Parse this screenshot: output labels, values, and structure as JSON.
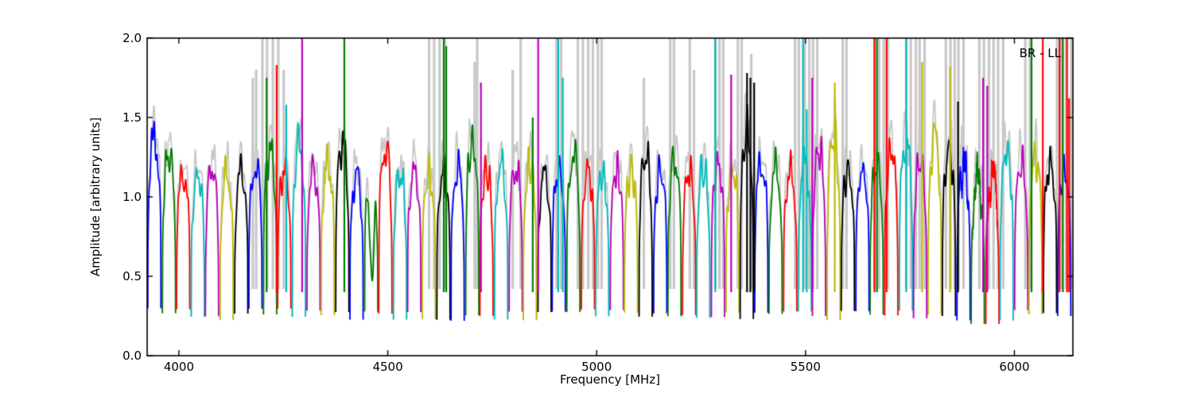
{
  "figure": {
    "background": "#ffffff"
  },
  "chart_data": {
    "type": "line",
    "title": "",
    "xlabel": "Frequency [MHz]",
    "ylabel": "Amplitude [arbitrary units]",
    "annotation": "BR - LL",
    "xlim": [
      3924,
      6140
    ],
    "ylim": [
      0.0,
      2.0
    ],
    "xticks": [
      4000,
      4500,
      5000,
      5500,
      6000
    ],
    "xtick_labels": [
      "4000",
      "4500",
      "5000",
      "5500",
      "6000"
    ],
    "yticks": [
      0.0,
      0.5,
      1.0,
      1.5,
      2.0
    ],
    "ytick_labels": [
      "0.0",
      "0.5",
      "1.0",
      "1.5",
      "2.0"
    ],
    "grid": false,
    "legend": null,
    "palette": {
      "b": "#0000ff",
      "g": "#007d00",
      "r": "#ff0000",
      "c": "#00bcbc",
      "m": "#bc00bc",
      "y": "#bcbc00",
      "k": "#000000",
      "gray": "#c8c8c8"
    },
    "overlay_color_key": "gray",
    "window_width_mhz": 34.6,
    "baseline_min": 0.24,
    "windows": [
      {
        "f0": 3924,
        "color": "b",
        "peak": 1.53
      },
      {
        "f0": 3959,
        "color": "g",
        "peak": 1.42
      },
      {
        "f0": 3993,
        "color": "r",
        "peak": 1.27
      },
      {
        "f0": 4028,
        "color": "c",
        "peak": 1.27
      },
      {
        "f0": 4062,
        "color": "m",
        "peak": 1.32
      },
      {
        "f0": 4097,
        "color": "y",
        "peak": 1.28
      },
      {
        "f0": 4132,
        "color": "k",
        "peak": 1.3
      },
      {
        "f0": 4166,
        "color": "b",
        "peak": 1.33
      },
      {
        "f0": 4201,
        "color": "g",
        "peak": 1.45
      },
      {
        "f0": 4235,
        "color": "r",
        "peak": 1.3
      },
      {
        "f0": 4270,
        "color": "c",
        "peak": 1.5
      },
      {
        "f0": 4305,
        "color": "m",
        "peak": 1.3
      },
      {
        "f0": 4339,
        "color": "y",
        "peak": 1.35
      },
      {
        "f0": 4374,
        "color": "k",
        "peak": 1.5
      },
      {
        "f0": 4408,
        "color": "b",
        "peak": 1.28
      },
      {
        "f0": 4443,
        "color": "g",
        "peak": 1.32,
        "dip": {
          "pos": 0.55,
          "width": 0.22,
          "depth": 0.6
        }
      },
      {
        "f0": 4477,
        "color": "r",
        "peak": 1.46
      },
      {
        "f0": 4512,
        "color": "c",
        "peak": 1.28
      },
      {
        "f0": 4546,
        "color": "m",
        "peak": 1.3
      },
      {
        "f0": 4581,
        "color": "y",
        "peak": 1.28
      },
      {
        "f0": 4616,
        "color": "k",
        "peak": 1.3
      },
      {
        "f0": 4650,
        "color": "b",
        "peak": 1.33
      },
      {
        "f0": 4685,
        "color": "g",
        "peak": 1.5
      },
      {
        "f0": 4719,
        "color": "r",
        "peak": 1.3
      },
      {
        "f0": 4754,
        "color": "c",
        "peak": 1.35
      },
      {
        "f0": 4789,
        "color": "m",
        "peak": 1.32
      },
      {
        "f0": 4823,
        "color": "y",
        "peak": 1.35
      },
      {
        "f0": 4858,
        "color": "k",
        "peak": 1.28
      },
      {
        "f0": 4892,
        "color": "b",
        "peak": 1.3
      },
      {
        "f0": 4927,
        "color": "g",
        "peak": 1.42
      },
      {
        "f0": 4962,
        "color": "r",
        "peak": 1.3
      },
      {
        "f0": 4996,
        "color": "c",
        "peak": 1.28
      },
      {
        "f0": 5031,
        "color": "m",
        "peak": 1.3
      },
      {
        "f0": 5065,
        "color": "y",
        "peak": 1.3
      },
      {
        "f0": 5100,
        "color": "k",
        "peak": 1.42
      },
      {
        "f0": 5135,
        "color": "b",
        "peak": 1.3
      },
      {
        "f0": 5169,
        "color": "g",
        "peak": 1.38
      },
      {
        "f0": 5204,
        "color": "r",
        "peak": 1.3
      },
      {
        "f0": 5238,
        "color": "c",
        "peak": 1.32
      },
      {
        "f0": 5273,
        "color": "m",
        "peak": 1.35
      },
      {
        "f0": 5308,
        "color": "y",
        "peak": 1.3
      },
      {
        "f0": 5342,
        "color": "k",
        "peak": 1.6
      },
      {
        "f0": 5377,
        "color": "b",
        "peak": 1.35
      },
      {
        "f0": 5411,
        "color": "g",
        "peak": 1.32
      },
      {
        "f0": 5446,
        "color": "r",
        "peak": 1.3
      },
      {
        "f0": 5481,
        "color": "c",
        "peak": 1.35
      },
      {
        "f0": 5515,
        "color": "m",
        "peak": 1.45
      },
      {
        "f0": 5550,
        "color": "y",
        "peak": 1.55
      },
      {
        "f0": 5584,
        "color": "k",
        "peak": 1.3
      },
      {
        "f0": 5619,
        "color": "b",
        "peak": 1.3
      },
      {
        "f0": 5653,
        "color": "g",
        "peak": 1.35
      },
      {
        "f0": 5688,
        "color": "r",
        "peak": 1.45
      },
      {
        "f0": 5723,
        "color": "c",
        "peak": 1.5
      },
      {
        "f0": 5757,
        "color": "m",
        "peak": 1.38
      },
      {
        "f0": 5792,
        "color": "y",
        "peak": 1.55
      },
      {
        "f0": 5826,
        "color": "k",
        "peak": 1.45
      },
      {
        "f0": 5861,
        "color": "b",
        "peak": 1.35,
        "noisy": true
      },
      {
        "f0": 5895,
        "color": "g",
        "peak": 1.25,
        "min": 0.2,
        "noisy": true
      },
      {
        "f0": 5930,
        "color": "r",
        "peak": 1.28,
        "min": 0.2,
        "noisy": true
      },
      {
        "f0": 5964,
        "color": "c",
        "peak": 1.45
      },
      {
        "f0": 5999,
        "color": "m",
        "peak": 1.35
      },
      {
        "f0": 6033,
        "color": "y",
        "peak": 1.4
      },
      {
        "f0": 6068,
        "color": "k",
        "peak": 1.35
      },
      {
        "f0": 6102,
        "color": "b",
        "peak": 1.3
      }
    ],
    "spikes": [
      {
        "f": 4210,
        "color": "g",
        "h": 1.75
      },
      {
        "f": 4234,
        "color": "r",
        "h": 1.83
      },
      {
        "f": 4257,
        "color": "c",
        "h": 1.58
      },
      {
        "f": 4295,
        "color": "m",
        "h": 2.2
      },
      {
        "f": 4396,
        "color": "g",
        "h": 2.2
      },
      {
        "f": 4634,
        "color": "g",
        "h": 2.2
      },
      {
        "f": 4640,
        "color": "g",
        "h": 1.95
      },
      {
        "f": 4723,
        "color": "m",
        "h": 1.72
      },
      {
        "f": 4847,
        "color": "g",
        "h": 1.5
      },
      {
        "f": 4860,
        "color": "m",
        "h": 2.2
      },
      {
        "f": 4908,
        "color": "c",
        "h": 2.2
      },
      {
        "f": 4919,
        "color": "c",
        "h": 1.75
      },
      {
        "f": 5284,
        "color": "c",
        "h": 2.2
      },
      {
        "f": 5322,
        "color": "m",
        "h": 1.77
      },
      {
        "f": 5360,
        "color": "k",
        "h": 1.78
      },
      {
        "f": 5368,
        "color": "k",
        "h": 1.75
      },
      {
        "f": 5377,
        "color": "k",
        "h": 1.72
      },
      {
        "f": 5494,
        "color": "c",
        "h": 2.2
      },
      {
        "f": 5503,
        "color": "c",
        "h": 1.55
      },
      {
        "f": 5516,
        "color": "m",
        "h": 1.75
      },
      {
        "f": 5570,
        "color": "y",
        "h": 1.72
      },
      {
        "f": 5665,
        "color": "r",
        "h": 2.2
      },
      {
        "f": 5671,
        "color": "g",
        "h": 2.2
      },
      {
        "f": 5694,
        "color": "r",
        "h": 2.2
      },
      {
        "f": 5741,
        "color": "c",
        "h": 2.2
      },
      {
        "f": 5779,
        "color": "y",
        "h": 1.85
      },
      {
        "f": 5846,
        "color": "y",
        "h": 1.82
      },
      {
        "f": 5865,
        "color": "k",
        "h": 1.6
      },
      {
        "f": 5925,
        "color": "m",
        "h": 1.75
      },
      {
        "f": 5935,
        "color": "m",
        "h": 1.7
      },
      {
        "f": 6041,
        "color": "g",
        "h": 2.2
      },
      {
        "f": 6068,
        "color": "r",
        "h": 2.2
      },
      {
        "f": 6108,
        "color": "r",
        "h": 2.2
      },
      {
        "f": 6116,
        "color": "g",
        "h": 2.2
      },
      {
        "f": 6126,
        "color": "r",
        "h": 2.2
      },
      {
        "f": 6131,
        "color": "r",
        "h": 1.62
      }
    ],
    "gray_spikes": [
      {
        "f": 4177,
        "h": 1.75
      },
      {
        "f": 4185,
        "h": 1.8
      },
      {
        "f": 4200,
        "h": 2.2
      },
      {
        "f": 4211,
        "h": 2.2
      },
      {
        "f": 4225,
        "h": 2.2
      },
      {
        "f": 4238,
        "h": 2.2
      },
      {
        "f": 4251,
        "h": 1.8
      },
      {
        "f": 4599,
        "h": 2.2
      },
      {
        "f": 4611,
        "h": 2.2
      },
      {
        "f": 4624,
        "h": 2.2
      },
      {
        "f": 4637,
        "h": 2.2
      },
      {
        "f": 4708,
        "h": 1.85
      },
      {
        "f": 4714,
        "h": 2.2
      },
      {
        "f": 4799,
        "h": 1.8
      },
      {
        "f": 4818,
        "h": 2.2
      },
      {
        "f": 4904,
        "h": 2.2
      },
      {
        "f": 4915,
        "h": 2.2
      },
      {
        "f": 4955,
        "h": 2.2
      },
      {
        "f": 4967,
        "h": 2.2
      },
      {
        "f": 4980,
        "h": 2.2
      },
      {
        "f": 4991,
        "h": 2.2
      },
      {
        "f": 5003,
        "h": 2.2
      },
      {
        "f": 5012,
        "h": 2.2
      },
      {
        "f": 5113,
        "h": 1.75
      },
      {
        "f": 5176,
        "h": 2.2
      },
      {
        "f": 5185,
        "h": 2.2
      },
      {
        "f": 5223,
        "h": 2.2
      },
      {
        "f": 5233,
        "h": 1.8
      },
      {
        "f": 5284,
        "h": 2.2
      },
      {
        "f": 5294,
        "h": 2.2
      },
      {
        "f": 5303,
        "h": 2.2
      },
      {
        "f": 5338,
        "h": 2.2
      },
      {
        "f": 5347,
        "h": 2.2
      },
      {
        "f": 5370,
        "h": 1.9
      },
      {
        "f": 5475,
        "h": 2.2
      },
      {
        "f": 5484,
        "h": 2.2
      },
      {
        "f": 5498,
        "h": 2.2
      },
      {
        "f": 5509,
        "h": 2.2
      },
      {
        "f": 5518,
        "h": 2.2
      },
      {
        "f": 5528,
        "h": 2.2
      },
      {
        "f": 5589,
        "h": 2.2
      },
      {
        "f": 5598,
        "h": 2.2
      },
      {
        "f": 5665,
        "h": 2.2
      },
      {
        "f": 5676,
        "h": 2.2
      },
      {
        "f": 5687,
        "h": 2.2
      },
      {
        "f": 5697,
        "h": 2.2
      },
      {
        "f": 5741,
        "h": 2.2
      },
      {
        "f": 5752,
        "h": 2.2
      },
      {
        "f": 5764,
        "h": 2.2
      },
      {
        "f": 5773,
        "h": 2.2
      },
      {
        "f": 5785,
        "h": 2.2
      },
      {
        "f": 5836,
        "h": 2.2
      },
      {
        "f": 5847,
        "h": 2.2
      },
      {
        "f": 5857,
        "h": 2.2
      },
      {
        "f": 5866,
        "h": 2.2
      },
      {
        "f": 5878,
        "h": 2.2
      },
      {
        "f": 5916,
        "h": 2.2
      },
      {
        "f": 5927,
        "h": 2.2
      },
      {
        "f": 5939,
        "h": 2.2
      },
      {
        "f": 5950,
        "h": 2.2
      },
      {
        "f": 5961,
        "h": 2.2
      },
      {
        "f": 5973,
        "h": 2.2
      },
      {
        "f": 6026,
        "h": 2.2
      },
      {
        "f": 6037,
        "h": 2.2
      },
      {
        "f": 6102,
        "h": 2.2
      },
      {
        "f": 6113,
        "h": 2.2
      },
      {
        "f": 6124,
        "h": 2.2
      },
      {
        "f": 6136,
        "h": 2.2
      }
    ]
  }
}
